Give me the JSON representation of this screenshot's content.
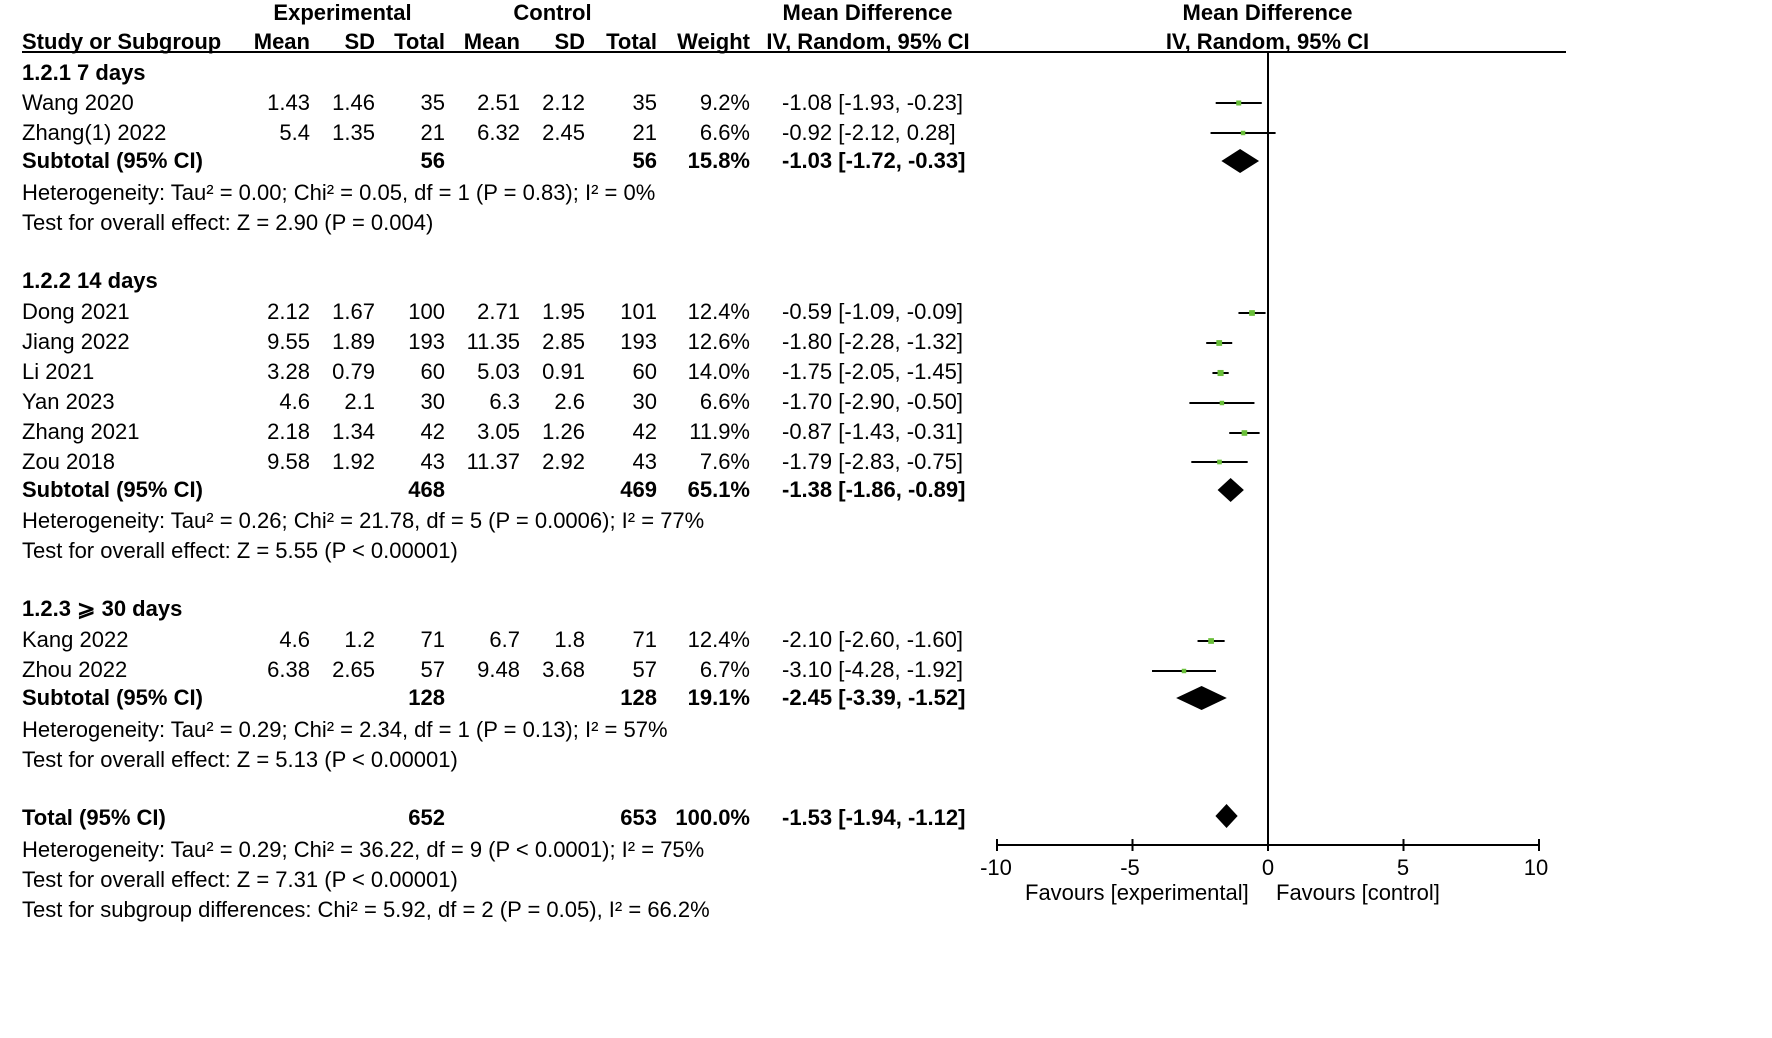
{
  "header": {
    "experimental": "Experimental",
    "control": "Control",
    "md_left": "Mean Difference",
    "md_right": "Mean Difference",
    "col_study": "Study or Subgroup",
    "col_mean1": "Mean",
    "col_sd1": "SD",
    "col_total1": "Total",
    "col_mean2": "Mean",
    "col_sd2": "SD",
    "col_total2": "Total",
    "col_weight": "Weight",
    "col_ci_left": "IV, Random, 95% CI",
    "col_ci_right": "IV, Random, 95% CI"
  },
  "groups": [
    {
      "title": "1.2.1 7 days",
      "studies": [
        {
          "name": "Wang 2020",
          "mean1": "1.43",
          "sd1": "1.46",
          "n1": "35",
          "mean2": "2.51",
          "sd2": "2.12",
          "n2": "35",
          "weight": "9.2%",
          "ci": "-1.08 [-1.93, -0.23]"
        },
        {
          "name": "Zhang(1)  2022",
          "mean1": "5.4",
          "sd1": "1.35",
          "n1": "21",
          "mean2": "6.32",
          "sd2": "2.45",
          "n2": "21",
          "weight": "6.6%",
          "ci": "-0.92 [-2.12, 0.28]"
        }
      ],
      "subtotal": {
        "label": "Subtotal (95% CI)",
        "n1": "56",
        "n2": "56",
        "weight": "15.8%",
        "ci": "-1.03 [-1.72, -0.33]"
      },
      "heterogeneity": "Heterogeneity: Tau² = 0.00; Chi² = 0.05, df = 1 (P = 0.83); I² = 0%",
      "overall": "Test for overall effect: Z = 2.90 (P = 0.004)"
    },
    {
      "title": "1.2.2 14 days",
      "studies": [
        {
          "name": "Dong 2021",
          "mean1": "2.12",
          "sd1": "1.67",
          "n1": "100",
          "mean2": "2.71",
          "sd2": "1.95",
          "n2": "101",
          "weight": "12.4%",
          "ci": "-0.59 [-1.09, -0.09]"
        },
        {
          "name": "Jiang 2022",
          "mean1": "9.55",
          "sd1": "1.89",
          "n1": "193",
          "mean2": "11.35",
          "sd2": "2.85",
          "n2": "193",
          "weight": "12.6%",
          "ci": "-1.80 [-2.28, -1.32]"
        },
        {
          "name": "Li 2021",
          "mean1": "3.28",
          "sd1": "0.79",
          "n1": "60",
          "mean2": "5.03",
          "sd2": "0.91",
          "n2": "60",
          "weight": "14.0%",
          "ci": "-1.75 [-2.05, -1.45]"
        },
        {
          "name": "Yan 2023",
          "mean1": "4.6",
          "sd1": "2.1",
          "n1": "30",
          "mean2": "6.3",
          "sd2": "2.6",
          "n2": "30",
          "weight": "6.6%",
          "ci": "-1.70 [-2.90, -0.50]"
        },
        {
          "name": "Zhang 2021",
          "mean1": "2.18",
          "sd1": "1.34",
          "n1": "42",
          "mean2": "3.05",
          "sd2": "1.26",
          "n2": "42",
          "weight": "11.9%",
          "ci": "-0.87 [-1.43, -0.31]"
        },
        {
          "name": "Zou 2018",
          "mean1": "9.58",
          "sd1": "1.92",
          "n1": "43",
          "mean2": "11.37",
          "sd2": "2.92",
          "n2": "43",
          "weight": "7.6%",
          "ci": "-1.79 [-2.83, -0.75]"
        }
      ],
      "subtotal": {
        "label": "Subtotal (95% CI)",
        "n1": "468",
        "n2": "469",
        "weight": "65.1%",
        "ci": "-1.38 [-1.86, -0.89]"
      },
      "heterogeneity": "Heterogeneity: Tau² = 0.26; Chi² = 21.78, df = 5 (P = 0.0006); I² = 77%",
      "overall": "Test for overall effect: Z = 5.55 (P < 0.00001)"
    },
    {
      "title": "1.2.3 ⩾ 30 days",
      "studies": [
        {
          "name": "Kang 2022",
          "mean1": "4.6",
          "sd1": "1.2",
          "n1": "71",
          "mean2": "6.7",
          "sd2": "1.8",
          "n2": "71",
          "weight": "12.4%",
          "ci": "-2.10 [-2.60, -1.60]"
        },
        {
          "name": "Zhou 2022",
          "mean1": "6.38",
          "sd1": "2.65",
          "n1": "57",
          "mean2": "9.48",
          "sd2": "3.68",
          "n2": "57",
          "weight": "6.7%",
          "ci": "-3.10 [-4.28, -1.92]"
        }
      ],
      "subtotal": {
        "label": "Subtotal (95% CI)",
        "n1": "128",
        "n2": "128",
        "weight": "19.1%",
        "ci": "-2.45 [-3.39, -1.52]"
      },
      "heterogeneity": "Heterogeneity: Tau² = 0.29; Chi² = 2.34, df = 1 (P = 0.13); I² = 57%",
      "overall": "Test for overall effect: Z = 5.13 (P < 0.00001)"
    }
  ],
  "total": {
    "label": "Total (95% CI)",
    "n1": "652",
    "n2": "653",
    "weight": "100.0%",
    "ci": "-1.53 [-1.94, -1.12]"
  },
  "total_heterogeneity": "Heterogeneity: Tau² = 0.29; Chi² = 36.22, df = 9 (P < 0.0001); I² = 75%",
  "total_overall": "Test for overall effect: Z = 7.31 (P < 0.00001)",
  "subgroup_diff": "Test for subgroup differences: Chi² = 5.92, df = 2 (P = 0.05), I² = 66.2%",
  "axis": {
    "tick_labels": [
      "-10",
      "-5",
      "0",
      "5",
      "10"
    ],
    "favours_left": "Favours [experimental]",
    "favours_right": "Favours [control]"
  },
  "colors": {
    "study_marker": "#6abf3a",
    "diamond": "#000000"
  },
  "chart_data": {
    "type": "forest",
    "xlim": [
      -10,
      10
    ],
    "xticks": [
      -10,
      -5,
      0,
      5,
      10
    ],
    "rows": [
      {
        "label": "Wang 2020",
        "kind": "study",
        "md": -1.08,
        "lo": -1.93,
        "hi": -0.23,
        "weight": 9.2
      },
      {
        "label": "Zhang(1)  2022",
        "kind": "study",
        "md": -0.92,
        "lo": -2.12,
        "hi": 0.28,
        "weight": 6.6
      },
      {
        "label": "Subtotal 1.2.1",
        "kind": "diamond",
        "md": -1.03,
        "lo": -1.72,
        "hi": -0.33
      },
      {
        "label": "Dong 2021",
        "kind": "study",
        "md": -0.59,
        "lo": -1.09,
        "hi": -0.09,
        "weight": 12.4
      },
      {
        "label": "Jiang 2022",
        "kind": "study",
        "md": -1.8,
        "lo": -2.28,
        "hi": -1.32,
        "weight": 12.6
      },
      {
        "label": "Li 2021",
        "kind": "study",
        "md": -1.75,
        "lo": -2.05,
        "hi": -1.45,
        "weight": 14.0
      },
      {
        "label": "Yan 2023",
        "kind": "study",
        "md": -1.7,
        "lo": -2.9,
        "hi": -0.5,
        "weight": 6.6
      },
      {
        "label": "Zhang 2021",
        "kind": "study",
        "md": -0.87,
        "lo": -1.43,
        "hi": -0.31,
        "weight": 11.9
      },
      {
        "label": "Zou 2018",
        "kind": "study",
        "md": -1.79,
        "lo": -2.83,
        "hi": -0.75,
        "weight": 7.6
      },
      {
        "label": "Subtotal 1.2.2",
        "kind": "diamond",
        "md": -1.38,
        "lo": -1.86,
        "hi": -0.89
      },
      {
        "label": "Kang 2022",
        "kind": "study",
        "md": -2.1,
        "lo": -2.6,
        "hi": -1.6,
        "weight": 12.4
      },
      {
        "label": "Zhou 2022",
        "kind": "study",
        "md": -3.1,
        "lo": -4.28,
        "hi": -1.92,
        "weight": 6.7
      },
      {
        "label": "Subtotal 1.2.3",
        "kind": "diamond",
        "md": -2.45,
        "lo": -3.39,
        "hi": -1.52
      },
      {
        "label": "Total",
        "kind": "diamond",
        "md": -1.53,
        "lo": -1.94,
        "hi": -1.12
      }
    ]
  }
}
